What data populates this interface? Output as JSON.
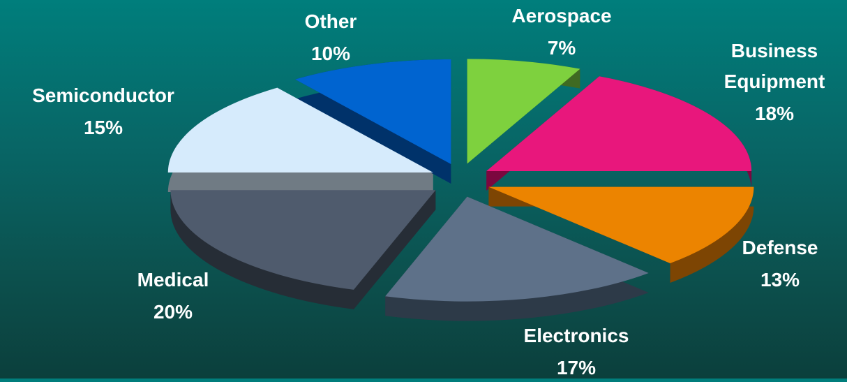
{
  "chart_data": {
    "type": "pie",
    "title": "",
    "exploded": true,
    "three_d": true,
    "legend": "none",
    "slices": [
      {
        "label": "Aerospace",
        "value": 7,
        "display": "7%",
        "color": "#7ed13e",
        "side_color": "#3f6a22"
      },
      {
        "label": "Business Equipment",
        "value": 18,
        "display": "18%",
        "color": "#e8177c",
        "side_color": "#7b073f"
      },
      {
        "label": "Defense",
        "value": 13,
        "display": "13%",
        "color": "#ec8400",
        "side_color": "#7d4503"
      },
      {
        "label": "Electronics",
        "value": 17,
        "display": "17%",
        "color": "#5e7189",
        "side_color": "#2d3a48"
      },
      {
        "label": "Medical",
        "value": 20,
        "display": "20%",
        "color": "#4f5b6d",
        "side_color": "#262d36"
      },
      {
        "label": "Semiconductor",
        "value": 15,
        "display": "15%",
        "color": "#d6ebfc",
        "side_color": "#707b84"
      },
      {
        "label": "Other",
        "value": 10,
        "display": "10%",
        "color": "#0064d0",
        "side_color": "#00326a"
      }
    ]
  }
}
